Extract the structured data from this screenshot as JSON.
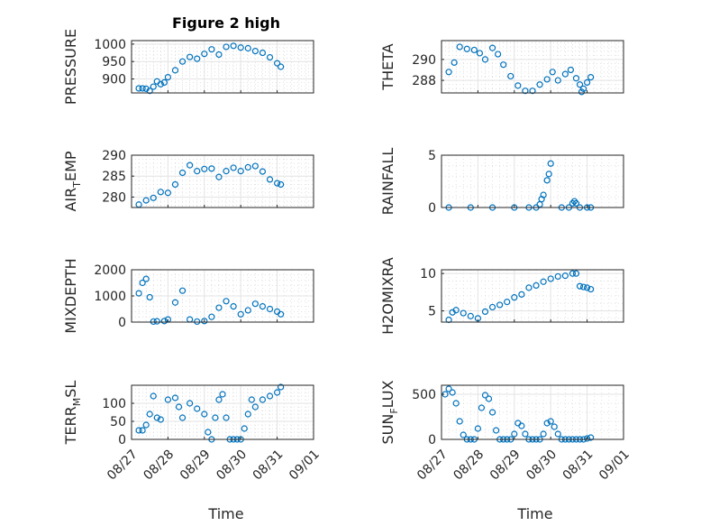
{
  "figure": {
    "title": "Figure 2 high",
    "xlabel": "Time"
  },
  "colors": {
    "marker": "#0072bd",
    "axes": "#262626",
    "grid": "#e3e3e3"
  },
  "chart_data": [
    {
      "type": "scatter",
      "name": "pressure",
      "ylabel": "PRESSURE",
      "xlim": [
        "08/27",
        "09/01"
      ],
      "ylim": [
        860,
        1010
      ],
      "yticks": [
        900,
        950,
        1000
      ],
      "ytick_labels": [
        "900",
        "950",
        "1000"
      ],
      "x": [
        0.2,
        0.3,
        0.4,
        0.5,
        0.6,
        0.7,
        0.8,
        0.9,
        1.0,
        1.2,
        1.4,
        1.6,
        1.8,
        2.0,
        2.2,
        2.4,
        2.6,
        2.8,
        3.0,
        3.2,
        3.4,
        3.6,
        3.8,
        4.0,
        4.1
      ],
      "y": [
        873,
        873,
        872,
        866,
        878,
        893,
        885,
        890,
        905,
        925,
        950,
        963,
        958,
        972,
        985,
        970,
        992,
        995,
        990,
        988,
        980,
        975,
        962,
        945,
        935
      ],
      "grid": true,
      "minor_grid": true
    },
    {
      "type": "scatter",
      "name": "theta",
      "ylabel": "THETA",
      "xlim": [
        "08/27",
        "09/01"
      ],
      "ylim": [
        286.8,
        291.8
      ],
      "yticks": [
        288,
        290
      ],
      "ytick_labels": [
        "288",
        "290"
      ],
      "x": [
        0.2,
        0.35,
        0.5,
        0.7,
        0.9,
        1.05,
        1.2,
        1.4,
        1.55,
        1.7,
        1.9,
        2.1,
        2.3,
        2.5,
        2.7,
        2.9,
        3.05,
        3.2,
        3.4,
        3.55,
        3.7,
        3.8,
        3.85,
        3.9,
        4.0,
        4.1
      ],
      "y": [
        288.8,
        289.7,
        291.2,
        291.0,
        290.9,
        290.6,
        290.0,
        291.1,
        290.5,
        289.5,
        288.4,
        287.5,
        287.0,
        287.0,
        287.6,
        288.1,
        288.8,
        288.0,
        288.6,
        289.0,
        288.2,
        287.6,
        286.9,
        287.2,
        287.8,
        288.3
      ],
      "grid": true,
      "minor_grid": true
    },
    {
      "type": "scatter",
      "name": "air_temp",
      "ylabel": "AIR_TEMP",
      "xlim": [
        "08/27",
        "09/01"
      ],
      "ylim": [
        277.5,
        290
      ],
      "yticks": [
        280,
        285,
        290
      ],
      "ytick_labels": [
        "280",
        "285",
        "290"
      ],
      "x": [
        0.2,
        0.4,
        0.6,
        0.8,
        1.0,
        1.2,
        1.4,
        1.6,
        1.8,
        2.0,
        2.2,
        2.4,
        2.6,
        2.8,
        3.0,
        3.2,
        3.4,
        3.6,
        3.8,
        4.0,
        4.1
      ],
      "y": [
        278.2,
        279.2,
        279.8,
        281.2,
        281.0,
        283.0,
        285.8,
        287.6,
        286.2,
        286.7,
        286.8,
        284.8,
        286.2,
        287.0,
        286.2,
        287.1,
        287.4,
        286.1,
        284.2,
        283.3,
        283.0
      ],
      "grid": true,
      "minor_grid": true
    },
    {
      "type": "scatter",
      "name": "rainfall",
      "ylabel": "RAINFALL",
      "xlim": [
        "08/27",
        "09/01"
      ],
      "ylim": [
        0,
        5
      ],
      "yticks": [
        0,
        5
      ],
      "ytick_labels": [
        "0",
        "5"
      ],
      "x": [
        0.2,
        0.8,
        1.4,
        2.0,
        2.4,
        2.6,
        2.7,
        2.75,
        2.8,
        2.9,
        2.95,
        3.0,
        3.3,
        3.5,
        3.6,
        3.65,
        3.7,
        3.8,
        4.0,
        4.1
      ],
      "y": [
        0,
        0,
        0,
        0,
        0,
        0,
        0.3,
        0.8,
        1.2,
        2.6,
        3.2,
        4.2,
        0,
        0,
        0.4,
        0.6,
        0.4,
        0,
        0,
        0
      ],
      "grid": true,
      "minor_grid": true
    },
    {
      "type": "scatter",
      "name": "mixdepth",
      "ylabel": "MIXDEPTH",
      "xlim": [
        "08/27",
        "09/01"
      ],
      "ylim": [
        0,
        2000
      ],
      "yticks": [
        0,
        1000,
        2000
      ],
      "ytick_labels": [
        "0",
        "1000",
        "2000"
      ],
      "x": [
        0.2,
        0.3,
        0.4,
        0.5,
        0.6,
        0.7,
        0.9,
        1.0,
        1.2,
        1.4,
        1.6,
        1.8,
        2.0,
        2.2,
        2.4,
        2.6,
        2.8,
        3.0,
        3.2,
        3.4,
        3.6,
        3.8,
        4.0,
        4.1
      ],
      "y": [
        1100,
        1500,
        1650,
        950,
        20,
        30,
        40,
        100,
        750,
        1200,
        100,
        20,
        40,
        200,
        550,
        800,
        600,
        300,
        450,
        700,
        600,
        500,
        400,
        300
      ],
      "grid": true,
      "minor_grid": true
    },
    {
      "type": "scatter",
      "name": "h2omixra",
      "ylabel": "H2OMIXRA",
      "xlim": [
        "08/27",
        "09/01"
      ],
      "ylim": [
        3.5,
        10.5
      ],
      "yticks": [
        5,
        10
      ],
      "ytick_labels": [
        "5",
        "10"
      ],
      "x": [
        0.2,
        0.3,
        0.4,
        0.6,
        0.8,
        1.0,
        1.2,
        1.4,
        1.6,
        1.8,
        2.0,
        2.2,
        2.4,
        2.6,
        2.8,
        3.0,
        3.2,
        3.4,
        3.6,
        3.7,
        3.8,
        3.9,
        4.0,
        4.1
      ],
      "y": [
        3.8,
        4.8,
        5.1,
        4.7,
        4.3,
        4.0,
        4.9,
        5.5,
        5.8,
        6.2,
        6.8,
        7.2,
        8.1,
        8.4,
        8.9,
        9.3,
        9.6,
        9.7,
        10.0,
        10.0,
        8.3,
        8.2,
        8.1,
        7.9
      ],
      "grid": true,
      "minor_grid": true
    },
    {
      "type": "scatter",
      "name": "terr_msl",
      "ylabel": "TERR_MSL",
      "xlim": [
        "08/27",
        "09/01"
      ],
      "ylim": [
        0,
        150
      ],
      "yticks": [
        0,
        50,
        100
      ],
      "ytick_labels": [
        "0",
        "50",
        "100"
      ],
      "x": [
        0.2,
        0.3,
        0.4,
        0.5,
        0.6,
        0.7,
        0.8,
        1.0,
        1.2,
        1.3,
        1.4,
        1.6,
        1.8,
        2.0,
        2.1,
        2.2,
        2.3,
        2.4,
        2.5,
        2.6,
        2.7,
        2.8,
        2.9,
        3.0,
        3.1,
        3.2,
        3.3,
        3.4,
        3.6,
        3.8,
        4.0,
        4.1
      ],
      "y": [
        25,
        25,
        40,
        70,
        120,
        60,
        55,
        110,
        115,
        90,
        60,
        100,
        85,
        70,
        20,
        0,
        60,
        110,
        125,
        60,
        0,
        0,
        0,
        0,
        30,
        70,
        110,
        90,
        110,
        120,
        130,
        145
      ],
      "grid": true,
      "minor_grid": true
    },
    {
      "type": "scatter",
      "name": "sun_flux",
      "ylabel": "SUN_FLUX",
      "xlim": [
        "08/27",
        "09/01"
      ],
      "ylim": [
        0,
        600
      ],
      "yticks": [
        0,
        500
      ],
      "ytick_labels": [
        "0",
        "500"
      ],
      "x": [
        0.1,
        0.2,
        0.3,
        0.4,
        0.5,
        0.6,
        0.7,
        0.8,
        0.9,
        1.0,
        1.1,
        1.2,
        1.3,
        1.4,
        1.5,
        1.6,
        1.7,
        1.8,
        1.9,
        2.0,
        2.1,
        2.2,
        2.3,
        2.4,
        2.5,
        2.6,
        2.7,
        2.8,
        2.9,
        3.0,
        3.1,
        3.2,
        3.3,
        3.4,
        3.5,
        3.6,
        3.7,
        3.8,
        3.9,
        4.0,
        4.1
      ],
      "y": [
        500,
        560,
        520,
        400,
        200,
        50,
        0,
        0,
        0,
        120,
        350,
        490,
        450,
        300,
        100,
        0,
        0,
        0,
        0,
        60,
        180,
        150,
        60,
        0,
        0,
        0,
        0,
        60,
        180,
        200,
        140,
        60,
        0,
        0,
        0,
        0,
        0,
        0,
        0,
        10,
        20
      ],
      "grid": true,
      "minor_grid": true
    }
  ],
  "xticks": {
    "values": [
      0,
      1,
      2,
      3,
      4,
      5
    ],
    "labels": [
      "08/27",
      "08/28",
      "08/29",
      "08/30",
      "08/31",
      "09/01"
    ]
  }
}
